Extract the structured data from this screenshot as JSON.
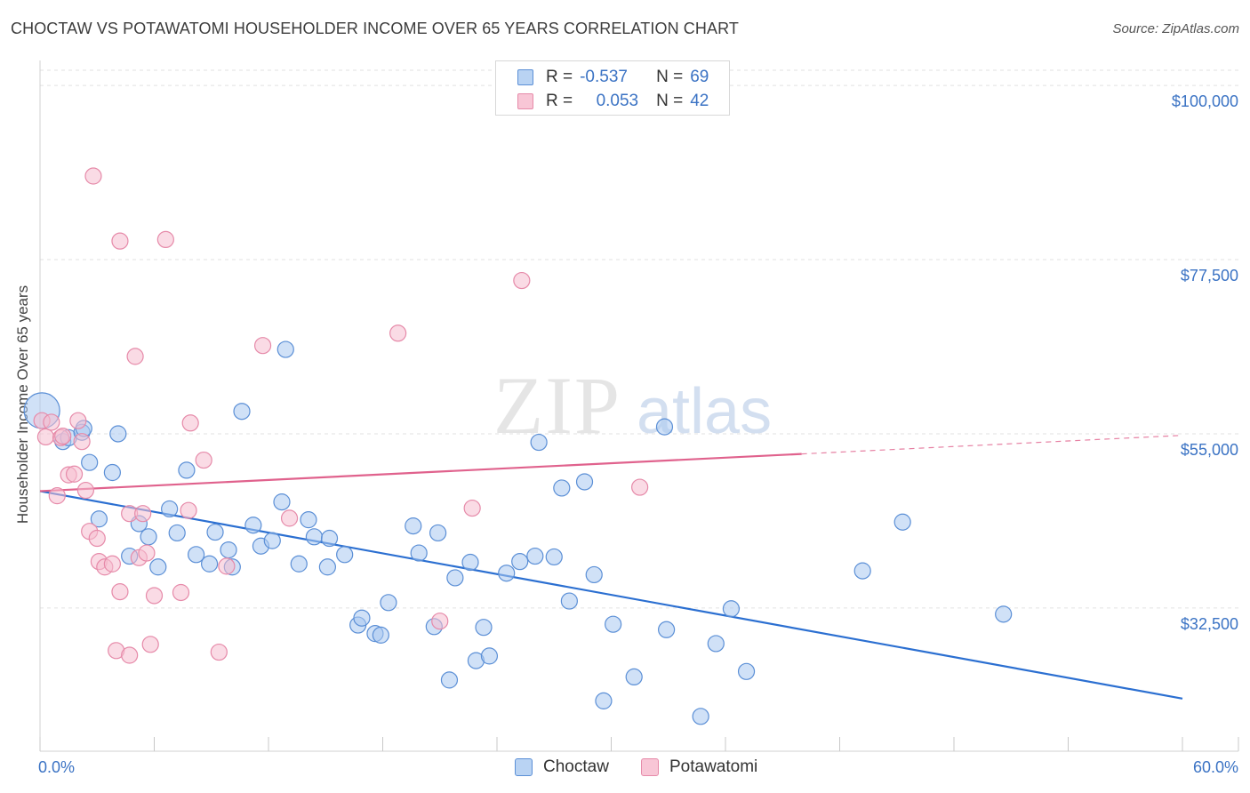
{
  "header": {
    "title": "CHOCTAW VS POTAWATOMI HOUSEHOLDER INCOME OVER 65 YEARS CORRELATION CHART",
    "source": "Source: ZipAtlas.com"
  },
  "watermark": {
    "zip": "ZIP",
    "atlas": "atlas"
  },
  "legend": {
    "rows": [
      {
        "r_label": "R =",
        "r_value": "-0.537",
        "n_label": "N =",
        "n_value": "69"
      },
      {
        "r_label": "R =",
        "r_value": "0.053",
        "n_label": "N =",
        "n_value": "42"
      }
    ]
  },
  "bottom_legend": {
    "choctaw": "Choctaw",
    "potawatomi": "Potawatomi"
  },
  "colors": {
    "choctaw_fill": "#a9c8f0",
    "choctaw_stroke": "#5b8fd6",
    "choctaw_line": "#2b6fd1",
    "potawatomi_fill": "#f6bed0",
    "potawatomi_stroke": "#e68aa9",
    "potawatomi_line": "#e0628d",
    "tick_text": "#3b73c4"
  },
  "chart_data": {
    "type": "scatter",
    "title": "CHOCTAW VS POTAWATOMI HOUSEHOLDER INCOME OVER 65 YEARS CORRELATION CHART",
    "xlabel": "",
    "ylabel": "Householder Income Over 65 years",
    "xlim": [
      0,
      60
    ],
    "ylim": [
      14000,
      103000
    ],
    "x_tick_labels": [
      "0.0%",
      "60.0%"
    ],
    "y_ticks": [
      32500,
      55000,
      77500,
      100000
    ],
    "y_tick_labels": [
      "$32,500",
      "$55,000",
      "$77,500",
      "$100,000"
    ],
    "grid": "horizontal dashed",
    "legend_position": "top-center",
    "series": [
      {
        "name": "Choctaw",
        "r": -0.537,
        "n": 69,
        "trend": {
          "x": [
            0,
            60
          ],
          "y": [
            47600,
            20800
          ],
          "solid_to": 60
        },
        "points": [
          [
            0.1,
            58000
          ],
          [
            1.2,
            54000
          ],
          [
            1.5,
            54500
          ],
          [
            2.2,
            55200
          ],
          [
            2.3,
            55700
          ],
          [
            2.6,
            51300
          ],
          [
            3.1,
            44000
          ],
          [
            3.8,
            50000
          ],
          [
            4.1,
            55000
          ],
          [
            4.7,
            39200
          ],
          [
            5.2,
            43400
          ],
          [
            5.7,
            41700
          ],
          [
            6.2,
            37800
          ],
          [
            6.8,
            45300
          ],
          [
            7.2,
            42200
          ],
          [
            7.7,
            50300
          ],
          [
            8.2,
            39400
          ],
          [
            8.9,
            38200
          ],
          [
            9.2,
            42300
          ],
          [
            9.9,
            40000
          ],
          [
            10.1,
            37800
          ],
          [
            10.6,
            57900
          ],
          [
            11.2,
            43200
          ],
          [
            11.6,
            40500
          ],
          [
            12.2,
            41200
          ],
          [
            12.7,
            46200
          ],
          [
            12.9,
            65900
          ],
          [
            13.6,
            38200
          ],
          [
            14.1,
            43900
          ],
          [
            14.4,
            41700
          ],
          [
            15.1,
            37800
          ],
          [
            15.2,
            41500
          ],
          [
            16.0,
            39400
          ],
          [
            16.7,
            30300
          ],
          [
            16.9,
            31200
          ],
          [
            17.6,
            29200
          ],
          [
            17.9,
            29000
          ],
          [
            18.3,
            33200
          ],
          [
            19.6,
            43100
          ],
          [
            19.9,
            39600
          ],
          [
            20.7,
            30100
          ],
          [
            20.9,
            42200
          ],
          [
            21.5,
            23200
          ],
          [
            21.8,
            36400
          ],
          [
            22.6,
            38400
          ],
          [
            22.9,
            25700
          ],
          [
            23.3,
            30000
          ],
          [
            23.6,
            26300
          ],
          [
            24.5,
            37000
          ],
          [
            25.2,
            38500
          ],
          [
            26.0,
            39200
          ],
          [
            26.2,
            53900
          ],
          [
            27.0,
            39100
          ],
          [
            27.4,
            48000
          ],
          [
            27.8,
            33400
          ],
          [
            28.6,
            48800
          ],
          [
            29.1,
            36800
          ],
          [
            29.6,
            20500
          ],
          [
            30.1,
            30400
          ],
          [
            31.2,
            23600
          ],
          [
            32.8,
            55900
          ],
          [
            32.9,
            29700
          ],
          [
            34.7,
            18500
          ],
          [
            35.5,
            27900
          ],
          [
            36.3,
            32400
          ],
          [
            37.1,
            24300
          ],
          [
            43.2,
            37300
          ],
          [
            45.3,
            43600
          ],
          [
            50.6,
            31700
          ]
        ]
      },
      {
        "name": "Potawatomi",
        "r": 0.053,
        "n": 42,
        "trend": {
          "x": [
            0,
            60
          ],
          "y": [
            47600,
            54800
          ],
          "solid_to": 40
        },
        "points": [
          [
            0.1,
            56700
          ],
          [
            0.3,
            54600
          ],
          [
            0.6,
            56500
          ],
          [
            0.9,
            47000
          ],
          [
            1.1,
            54500
          ],
          [
            1.2,
            54700
          ],
          [
            1.5,
            49700
          ],
          [
            1.8,
            49800
          ],
          [
            2.0,
            56700
          ],
          [
            2.2,
            54000
          ],
          [
            2.4,
            47700
          ],
          [
            2.6,
            42400
          ],
          [
            2.8,
            88300
          ],
          [
            3.0,
            41500
          ],
          [
            3.1,
            38500
          ],
          [
            3.4,
            37800
          ],
          [
            3.8,
            38200
          ],
          [
            4.0,
            27000
          ],
          [
            4.2,
            34600
          ],
          [
            4.2,
            79900
          ],
          [
            4.7,
            26400
          ],
          [
            4.7,
            44700
          ],
          [
            5.0,
            65000
          ],
          [
            5.2,
            39000
          ],
          [
            5.4,
            44700
          ],
          [
            5.6,
            39600
          ],
          [
            5.8,
            27800
          ],
          [
            6.0,
            34100
          ],
          [
            6.6,
            80100
          ],
          [
            7.4,
            34500
          ],
          [
            7.8,
            45100
          ],
          [
            7.9,
            56400
          ],
          [
            8.6,
            51600
          ],
          [
            9.4,
            26800
          ],
          [
            9.8,
            37900
          ],
          [
            11.7,
            66400
          ],
          [
            13.1,
            44100
          ],
          [
            18.8,
            68000
          ],
          [
            21.0,
            30800
          ],
          [
            22.7,
            45400
          ],
          [
            25.3,
            74800
          ],
          [
            31.5,
            48100
          ]
        ]
      }
    ]
  }
}
